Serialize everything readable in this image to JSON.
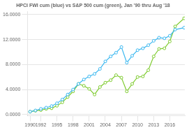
{
  "chart_data": {
    "type": "line",
    "title": "HPCI FWI cum (blue) vs S&P 500 cum (green), Jan '90 thru Aug '18",
    "x": [
      1990,
      1991,
      1992,
      1993,
      1994,
      1995,
      1996,
      1997,
      1998,
      1999,
      2000,
      2001,
      2002,
      2003,
      2004,
      2005,
      2006,
      2007,
      2008,
      2009,
      2010,
      2011,
      2012,
      2013,
      2014,
      2015,
      2016,
      2017,
      2018.67
    ],
    "series": [
      {
        "color": "#3bb8f0",
        "marker": "circle",
        "values": [
          450,
          650,
          900,
          1100,
          1350,
          1800,
          2400,
          3200,
          4000,
          4900,
          5600,
          6100,
          6500,
          7300,
          8500,
          9300,
          9900,
          10800,
          8300,
          9400,
          10300,
          10600,
          11100,
          11800,
          12300,
          12200,
          12600,
          13600,
          13900
        ]
      },
      {
        "color": "#7ecb2e",
        "marker": "circle",
        "values": [
          450,
          600,
          700,
          900,
          1000,
          1400,
          1950,
          2800,
          3700,
          4900,
          4600,
          4100,
          3200,
          4400,
          5100,
          5500,
          6300,
          5900,
          3700,
          4900,
          6000,
          6100,
          7100,
          9300,
          10500,
          10600,
          11700,
          14100,
          15400
        ]
      }
    ],
    "xlim": [
      1989.5,
      2018.8
    ],
    "xticks": [
      1990,
      1992,
      1995,
      1998,
      2001,
      2004,
      2007,
      2010,
      2013,
      2016
    ],
    "ylim": [
      -200,
      16500
    ],
    "yticks": [
      {
        "value": 0,
        "label": "0.0000"
      },
      {
        "value": 4000,
        "label": "4.0000"
      },
      {
        "value": 8000,
        "label": "8.0000"
      },
      {
        "value": 12000,
        "label": "12.0000"
      },
      {
        "value": 16000,
        "label": "16.0000"
      }
    ],
    "grid": "y"
  }
}
